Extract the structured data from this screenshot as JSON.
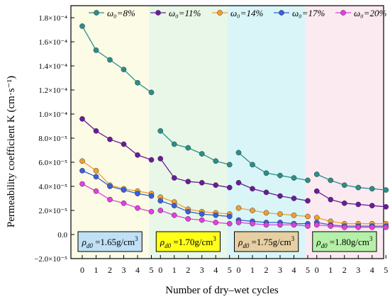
{
  "chart_data": {
    "type": "line",
    "ylabel": "Permeability coefficient K (cm·s⁻¹)",
    "xlabel": "Number of dry–wet cycles",
    "ylim": [
      -2e-05,
      0.00019
    ],
    "y_ticks": [
      {
        "value": -2e-05,
        "label": "−2.0×10⁻⁵"
      },
      {
        "value": 0,
        "label": "0.0"
      },
      {
        "value": 2e-05,
        "label": "2.0×10⁻⁵"
      },
      {
        "value": 4e-05,
        "label": "4.0×10⁻⁵"
      },
      {
        "value": 6e-05,
        "label": "6.0×10⁻⁵"
      },
      {
        "value": 8e-05,
        "label": "8.0×10⁻⁵"
      },
      {
        "value": 0.0001,
        "label": "1.0×10⁻⁴"
      },
      {
        "value": 0.00012,
        "label": "1.2×10⁻⁴"
      },
      {
        "value": 0.00014,
        "label": "1.4×10⁻⁴"
      },
      {
        "value": 0.00016,
        "label": "1.6×10⁻⁴"
      },
      {
        "value": 0.00018,
        "label": "1.8×10⁻⁴"
      }
    ],
    "x_ticks": [
      "0",
      "1",
      "2",
      "3",
      "4",
      "5"
    ],
    "legend_placement": "top",
    "series": [
      {
        "name": "ω₀=8%",
        "color": "#2a8f8a"
      },
      {
        "name": "ω₀=11%",
        "color": "#6a1b9a"
      },
      {
        "name": "ω₀=14%",
        "color": "#f0a030"
      },
      {
        "name": "ω₀=17%",
        "color": "#3a5fd9"
      },
      {
        "name": "ω₀=20%",
        "color": "#e23fe0"
      }
    ],
    "panels": [
      {
        "label": "ρd0 =1.65g/cm³",
        "label_parts": {
          "sym": "ρ",
          "sub": "d0",
          "rest": " =1.65g/cm",
          "sup": "3"
        },
        "bg_color": "#fbfbe6",
        "label_bg": "#bfe0f5",
        "values": [
          [
            0.000173,
            0.000153,
            0.000145,
            0.000137,
            0.000126,
            0.000118
          ],
          [
            9.6e-05,
            8.6e-05,
            7.9e-05,
            7.5e-05,
            6.6e-05,
            6.2e-05
          ],
          [
            6.1e-05,
            5.3e-05,
            4.1e-05,
            3.8e-05,
            3.6e-05,
            3.4e-05
          ],
          [
            5.3e-05,
            4.8e-05,
            4e-05,
            3.7e-05,
            3.4e-05,
            3.2e-05
          ],
          [
            4.2e-05,
            3.6e-05,
            2.9e-05,
            2.6e-05,
            2.2e-05,
            1.9e-05
          ]
        ]
      },
      {
        "label": "ρd0 =1.70g/cm³",
        "label_parts": {
          "sym": "ρ",
          "sub": "d0",
          "rest": " =1.70g/cm",
          "sup": "3"
        },
        "bg_color": "#e8f7e8",
        "label_bg": "#ffff1a",
        "values": [
          [
            8.6e-05,
            7.5e-05,
            7.2e-05,
            6.7e-05,
            6.1e-05,
            5.8e-05
          ],
          [
            6.3e-05,
            4.7e-05,
            4.4e-05,
            4.3e-05,
            4.1e-05,
            3.9e-05
          ],
          [
            3.1e-05,
            2.7e-05,
            2.1e-05,
            1.9e-05,
            1.8e-05,
            1.7e-05
          ],
          [
            2.8e-05,
            2.4e-05,
            1.9e-05,
            1.7e-05,
            1.6e-05,
            1.5e-05
          ],
          [
            2e-05,
            1.6e-05,
            1.3e-05,
            1.2e-05,
            1e-05,
            9e-06
          ]
        ]
      },
      {
        "label": "ρd0 =1.75g/cm³",
        "label_parts": {
          "sym": "ρ",
          "sub": "d0",
          "rest": " =1.75g/cm",
          "sup": "3"
        },
        "bg_color": "#d9f5f7",
        "label_bg": "#e6cfa3",
        "values": [
          [
            6.8e-05,
            5.8e-05,
            5.1e-05,
            4.9e-05,
            4.7e-05,
            4.5e-05
          ],
          [
            4.3e-05,
            3.8e-05,
            3.5e-05,
            3.2e-05,
            3e-05,
            2.8e-05
          ],
          [
            2.2e-05,
            2e-05,
            1.8e-05,
            1.7e-05,
            1.6e-05,
            1.5e-05
          ],
          [
            1.2e-05,
            1.1e-05,
            1e-05,
            1e-05,
            9e-06,
            9e-06
          ],
          [
            1e-05,
            9e-06,
            8e-06,
            8e-06,
            8e-06,
            7e-06
          ]
        ]
      },
      {
        "label": "ρd0 =1.80g/cm³",
        "label_parts": {
          "sym": "ρ",
          "sub": "d0",
          "rest": " =1.80g/cm",
          "sup": "3"
        },
        "bg_color": "#fbeaf0",
        "label_bg": "#b5f0a8",
        "values": [
          [
            5e-05,
            4.5e-05,
            4.1e-05,
            3.9e-05,
            3.8e-05,
            3.7e-05
          ],
          [
            3.6e-05,
            2.9e-05,
            2.6e-05,
            2.5e-05,
            2.4e-05,
            2.3e-05
          ],
          [
            1.4e-05,
            1.1e-05,
            9e-06,
            9e-06,
            9e-06,
            9e-06
          ],
          [
            1e-05,
            8e-06,
            7e-06,
            7e-06,
            7e-06,
            7e-06
          ],
          [
            8e-06,
            7e-06,
            6e-06,
            6e-06,
            6e-06,
            6e-06
          ]
        ]
      }
    ]
  }
}
